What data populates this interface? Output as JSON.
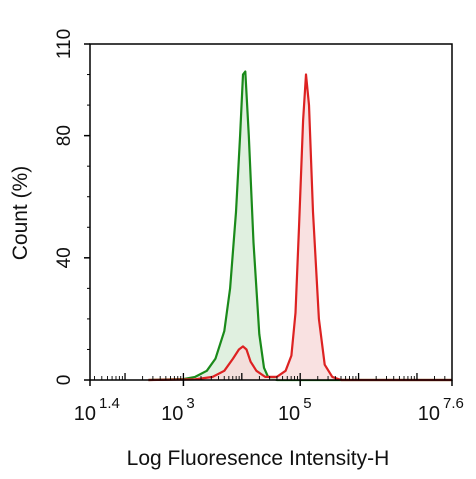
{
  "chart_data": {
    "type": "area",
    "title": "",
    "xlabel": "Log Fluoresence Intensity-H",
    "ylabel": "Count  (%)",
    "x_scale": "log10",
    "xlim_log10": [
      1.4,
      7.6
    ],
    "ylim": [
      0,
      110
    ],
    "grid": false,
    "legend": "none",
    "y_ticks": [
      {
        "value": 0,
        "label": "0"
      },
      {
        "value": 40,
        "label": "40"
      },
      {
        "value": 80,
        "label": "80"
      },
      {
        "value": 110,
        "label": "110"
      }
    ],
    "x_ticks": [
      {
        "log10": 1.4,
        "base": "10",
        "exp": "1.4"
      },
      {
        "log10": 3,
        "base": "10",
        "exp": "3"
      },
      {
        "log10": 5,
        "base": "10",
        "exp": "5"
      },
      {
        "log10": 7.6,
        "base": "10",
        "exp": "7.6"
      }
    ],
    "series": [
      {
        "color": "#1a8a1a",
        "fill": "#d8ecd8",
        "points": [
          [
            2.4,
            0
          ],
          [
            3.0,
            0.3
          ],
          [
            3.2,
            1
          ],
          [
            3.4,
            3
          ],
          [
            3.55,
            7
          ],
          [
            3.7,
            16
          ],
          [
            3.8,
            30
          ],
          [
            3.9,
            55
          ],
          [
            3.97,
            80
          ],
          [
            4.02,
            100
          ],
          [
            4.06,
            101
          ],
          [
            4.12,
            80
          ],
          [
            4.2,
            45
          ],
          [
            4.3,
            15
          ],
          [
            4.38,
            4
          ],
          [
            4.45,
            1
          ],
          [
            4.6,
            0
          ],
          [
            7.6,
            0
          ]
        ]
      },
      {
        "color": "#dd2222",
        "fill": "#f8dada",
        "points": [
          [
            2.4,
            0
          ],
          [
            3.2,
            0.2
          ],
          [
            3.5,
            1
          ],
          [
            3.7,
            3
          ],
          [
            3.85,
            7
          ],
          [
            3.95,
            10
          ],
          [
            4.02,
            11
          ],
          [
            4.08,
            10
          ],
          [
            4.15,
            6
          ],
          [
            4.25,
            3
          ],
          [
            4.4,
            1
          ],
          [
            4.6,
            1
          ],
          [
            4.75,
            3
          ],
          [
            4.85,
            8
          ],
          [
            4.92,
            22
          ],
          [
            4.98,
            50
          ],
          [
            5.05,
            85
          ],
          [
            5.1,
            100
          ],
          [
            5.15,
            90
          ],
          [
            5.22,
            55
          ],
          [
            5.32,
            20
          ],
          [
            5.42,
            5
          ],
          [
            5.55,
            1
          ],
          [
            5.7,
            0
          ],
          [
            7.6,
            0
          ]
        ]
      }
    ]
  }
}
